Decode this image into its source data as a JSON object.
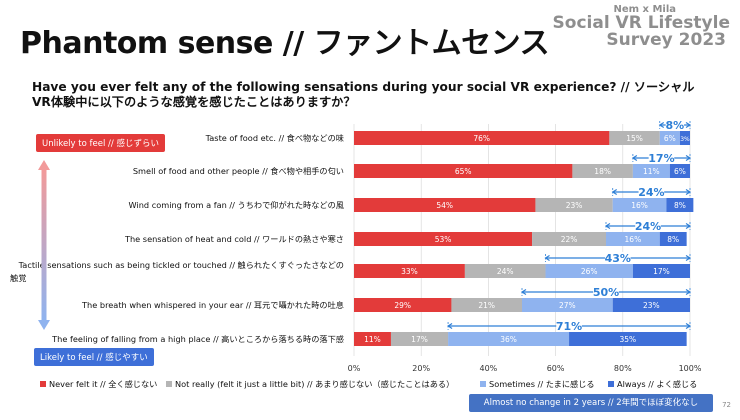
{
  "title": "Phantom sense // ファントムセンス",
  "brand": {
    "top": "Nem x Mila",
    "main": "Social VR Lifestyle",
    "year": "Survey 2023"
  },
  "question": "Have you ever felt any of the following sensations during your social VR experience? // ソーシャルVR体験中に以下のような感覚を感じたことはありますか？",
  "scale": {
    "top": "Unlikely to feel // 感じずらい",
    "bottom": "Likely to feel // 感じやすい"
  },
  "footer_badge": "Almost no change in 2 years // 2年間でほぼ変化なし",
  "page_number": "72",
  "colors": {
    "never": "#e33b3a",
    "not_really": "#b5b5b5",
    "sometimes": "#8fb3ef",
    "always": "#3e6fd8",
    "bracket": "#2e7fd6"
  },
  "chart_data": {
    "type": "bar",
    "orientation": "horizontal-stacked-100",
    "categories": [
      "Taste of food etc. // 食べ物などの味",
      "Smell of food and other people // 食べ物や相手の匂い",
      "Wind coming from a fan // うちわで仰がれた時などの風",
      "The sensation of heat and cold // ワールドの熱さや寒さ",
      "Tactile sensations such as being tickled or touched // 触られたくすぐったさなどの触覚",
      "The breath when whispered in your ear // 耳元で囁かれた時の吐息",
      "The feeling of falling from a high place // 高いところから落ちる時の落下感"
    ],
    "series": [
      {
        "name": "Never felt it // 全く感じない",
        "values": [
          76,
          65,
          54,
          53,
          33,
          29,
          11
        ],
        "labels": [
          "76%",
          "65%",
          "54%",
          "53%",
          "33%",
          "29%",
          "11%"
        ]
      },
      {
        "name": "Not really (felt it just a little bit) // あまり感じない（感じたことはある）",
        "values": [
          15,
          18,
          23,
          22,
          24,
          21,
          17
        ],
        "labels": [
          "15%",
          "18%",
          "23%",
          "22%",
          "24%",
          "21%",
          "17%"
        ]
      },
      {
        "name": "Sometimes // たまに感じる",
        "values": [
          6,
          11,
          16,
          16,
          26,
          27,
          36
        ],
        "labels": [
          "6%",
          "11%",
          "16%",
          "16%",
          "26%",
          "27%",
          "36%"
        ]
      },
      {
        "name": "Always // よく感じる",
        "values": [
          3,
          6,
          8,
          8,
          17,
          23,
          35
        ],
        "labels": [
          "3%",
          "6%",
          "8%",
          "8%",
          "17%",
          "23%",
          "35%"
        ]
      }
    ],
    "brackets": [
      "8%",
      "17%",
      "24%",
      "24%",
      "43%",
      "50%",
      "71%"
    ],
    "xlim": [
      0,
      100
    ],
    "xticks": [
      "0%",
      "20%",
      "40%",
      "60%",
      "80%",
      "100%"
    ],
    "grid": true,
    "legend_position": "bottom"
  }
}
